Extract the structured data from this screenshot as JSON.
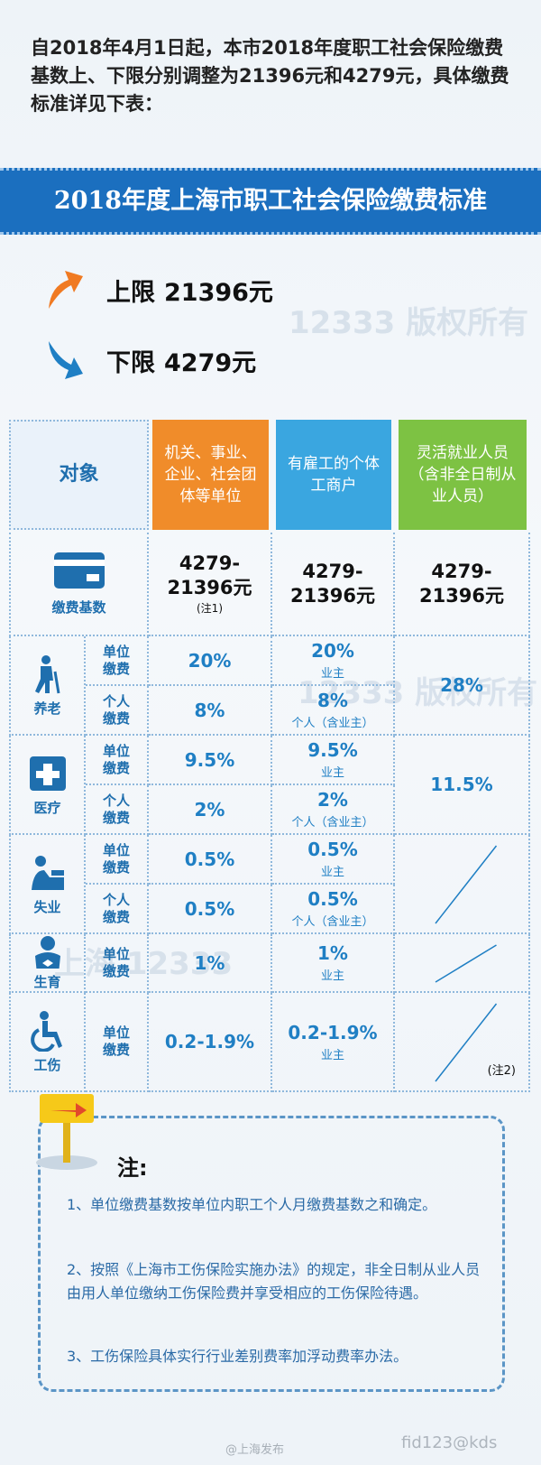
{
  "intro": "自2018年4月1日起，本市2018年度职工社会保险缴费基数上、下限分别调整为21396元和4279元，具体缴费标准详见下表：",
  "banner_title": "2018年度上海市职工社会保险缴费标准",
  "limits": [
    {
      "label": "上限",
      "amount": "21396元"
    },
    {
      "label": "下限",
      "amount": "4279元"
    }
  ],
  "watermark": {
    "region": "上海",
    "number": "12333",
    "text": "版权所有"
  },
  "table": {
    "headers": [
      "对象",
      "机关、事业、企业、社会团体等单位",
      "有雇工的个体工商户",
      "灵活就业人员（含非全日制从业人员）"
    ],
    "base": {
      "label": "缴费基数",
      "values": [
        "4279-21396元",
        "4279-21396元",
        "4279-21396元"
      ],
      "note": "(注1)"
    },
    "groups": [
      {
        "label": "养老",
        "flexible": "28%",
        "rows": [
          {
            "type": "单位缴费",
            "org": "20%",
            "self_employed": "20%",
            "self_employed_note": "业主"
          },
          {
            "type": "个人缴费",
            "org": "8%",
            "self_employed": "8%",
            "self_employed_note": "个人（含业主）"
          }
        ]
      },
      {
        "label": "医疗",
        "flexible": "11.5%",
        "rows": [
          {
            "type": "单位缴费",
            "org": "9.5%",
            "self_employed": "9.5%",
            "self_employed_note": "业主"
          },
          {
            "type": "个人缴费",
            "org": "2%",
            "self_employed": "2%",
            "self_employed_note": "个人（含业主）"
          }
        ]
      },
      {
        "label": "失业",
        "rows": [
          {
            "type": "单位缴费",
            "org": "0.5%",
            "self_employed": "0.5%",
            "self_employed_note": "业主"
          },
          {
            "type": "个人缴费",
            "org": "0.5%",
            "self_employed": "0.5%",
            "self_employed_note": "个人（含业主）"
          }
        ]
      },
      {
        "label": "生育",
        "rows": [
          {
            "type": "单位缴费",
            "org": "1%",
            "self_employed": "1%",
            "self_employed_note": "业主"
          }
        ]
      },
      {
        "label": "工伤",
        "flexible_note": "(注2)",
        "rows": [
          {
            "type": "单位缴费",
            "org": "0.2-1.9%",
            "self_employed": "0.2-1.9%",
            "self_employed_note": "业主"
          }
        ]
      }
    ]
  },
  "notes": {
    "title": "注:",
    "items": [
      "1、单位缴费基数按单位内职工个人月缴费基数之和确定。",
      "2、按照《上海市工伤保险实施办法》的规定，非全日制从业人员由用人单位缴纳工伤保险费并享受相应的工伤保险待遇。",
      "3、工伤保险具体实行行业差别费率加浮动费率办法。"
    ]
  },
  "footer": {
    "source": "@上海发布",
    "id": "fid123@kds"
  }
}
